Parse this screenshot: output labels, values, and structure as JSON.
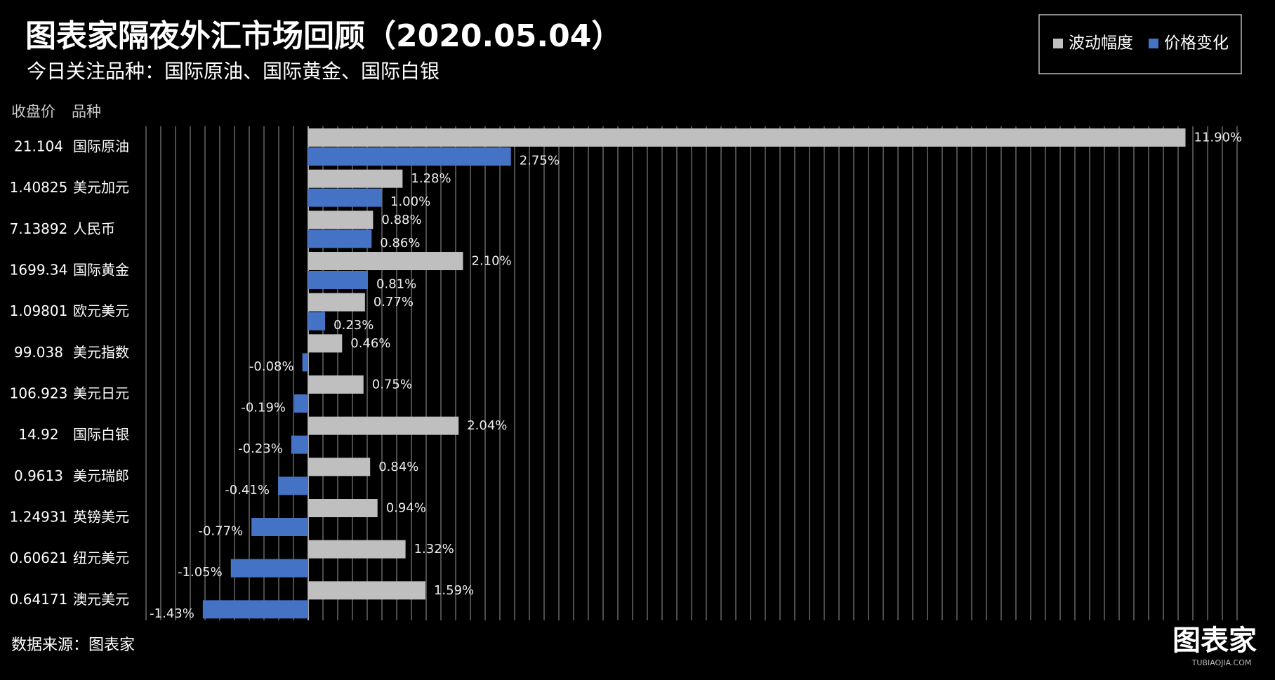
{
  "chart_data": {
    "type": "bar",
    "orientation": "horizontal",
    "title": "图表家隔夜外汇市场回顾（2020.05.04）",
    "subtitle": "今日关注品种：国际原油、国际黄金、国际白银",
    "price_header": "收盘价",
    "category_header": "品种",
    "source": "数据来源：图表家",
    "logo": "图表家",
    "logo_sub": "TUBIAOJIA.COM",
    "categories": [
      "国际原油",
      "美元加元",
      "人民币",
      "国际黄金",
      "欧元美元",
      "美元指数",
      "美元日元",
      "国际白银",
      "美元瑞郎",
      "英镑美元",
      "纽元美元",
      "澳元美元"
    ],
    "prices": [
      21.104,
      1.40825,
      7.13892,
      1699.34,
      1.09801,
      99.038,
      106.923,
      14.92,
      0.9613,
      1.24931,
      0.60621,
      0.64171
    ],
    "series": [
      {
        "name": "波动幅度",
        "color": "#bfbfbf",
        "values": [
          11.9,
          1.28,
          0.88,
          2.1,
          0.77,
          0.46,
          0.75,
          2.04,
          0.84,
          0.94,
          1.32,
          1.59
        ],
        "value_labels": [
          "11.90%",
          "1.28%",
          "0.88%",
          "2.10%",
          "0.77%",
          "0.46%",
          "0.75%",
          "2.04%",
          "0.84%",
          "0.94%",
          "1.32%",
          "1.59%"
        ]
      },
      {
        "name": "价格变化",
        "color": "#4472c4",
        "values": [
          2.75,
          1.0,
          0.86,
          0.81,
          0.23,
          -0.08,
          -0.19,
          -0.23,
          -0.41,
          -0.77,
          -1.05,
          -1.43
        ],
        "value_labels": [
          "2.75%",
          "1.00%",
          "0.86%",
          "0.81%",
          "0.23%",
          "-0.08%",
          "-0.19%",
          "-0.23%",
          "-0.41%",
          "-0.77%",
          "-1.05%",
          "-1.43%"
        ]
      }
    ],
    "xlim": [
      -2.2,
      12.6
    ],
    "xticks": [
      -2.2,
      -2,
      -1.8,
      -1.6,
      -1.4,
      -1.2,
      -1,
      -0.8,
      -0.6,
      -0.4,
      -0.2,
      0,
      0.2,
      0.4,
      0.6,
      0.8,
      1,
      1.2,
      1.4,
      1.6,
      1.8,
      2,
      2.2,
      2.4,
      2.6,
      2.8,
      3,
      3.2,
      3.4,
      3.6,
      3.8,
      4,
      4.2,
      4.4,
      4.6,
      4.8,
      5,
      5.2,
      5.4,
      5.6,
      5.8,
      6,
      6.2,
      6.4,
      6.6,
      6.8,
      7,
      7.2,
      7.4,
      7.6,
      7.8,
      8,
      8.2,
      8.4,
      8.6,
      8.8,
      9,
      9.2,
      9.4,
      9.6,
      9.8,
      10,
      10.2,
      10.4,
      10.6,
      10.8,
      11,
      11.2,
      11.4,
      11.6,
      11.8,
      12,
      12.2,
      12.4,
      12.6
    ],
    "grid": true,
    "legend": "top-right"
  }
}
